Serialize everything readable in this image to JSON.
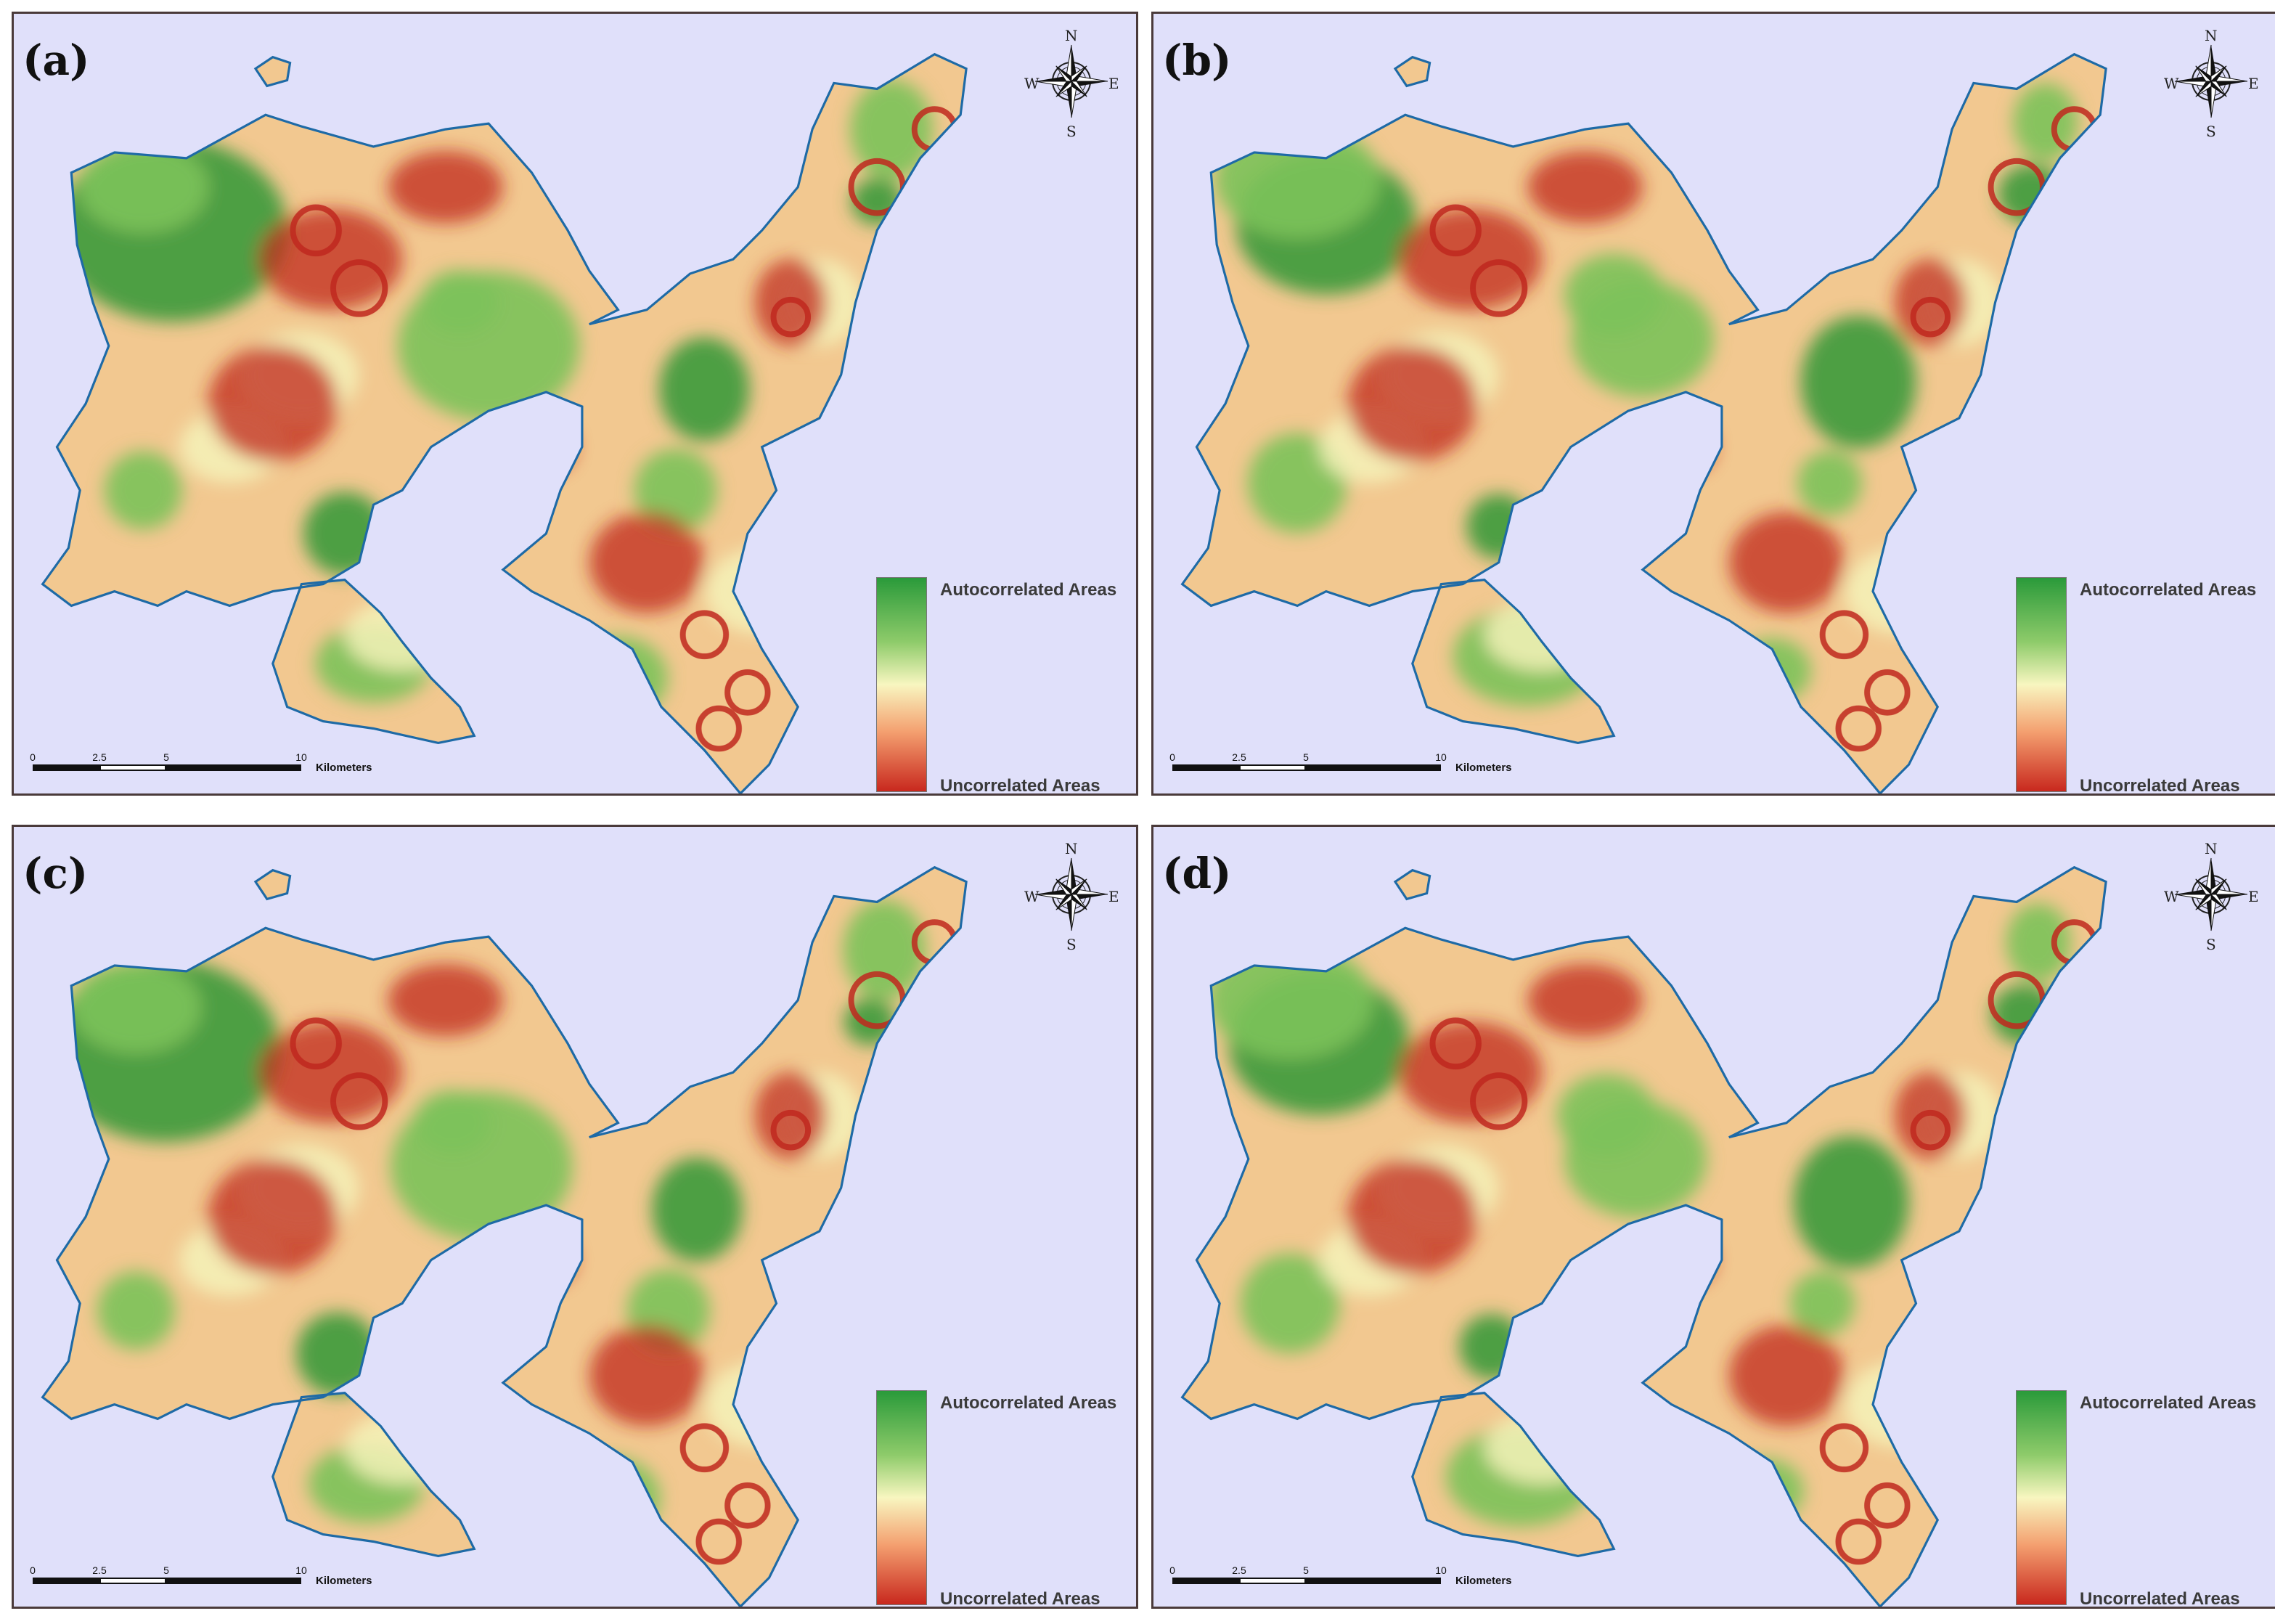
{
  "figure": {
    "panels": [
      {
        "label": "(a)"
      },
      {
        "label": "(b)"
      },
      {
        "label": "(c)"
      },
      {
        "label": "(d)"
      }
    ],
    "legend": {
      "high_label": "Autocorrelated Areas",
      "low_label": "Uncorrelated Areas",
      "ramp_colors": [
        "#2a9a3a",
        "#8ecb6a",
        "#f8f6c0",
        "#f4a070",
        "#c8281e"
      ]
    },
    "compass": {
      "n": "N",
      "s": "S",
      "w": "W",
      "e": "E",
      "icon": "compass-rose-icon"
    },
    "scale_bar": {
      "ticks": [
        "0",
        "2.5",
        "5",
        "10"
      ],
      "unit": "Kilometers"
    },
    "colors": {
      "sea": "#e0e0fa",
      "coast": "#1e6aa6",
      "green": "#3a9a3a",
      "yellow": "#f4f2b8",
      "red": "#c0281e"
    }
  }
}
